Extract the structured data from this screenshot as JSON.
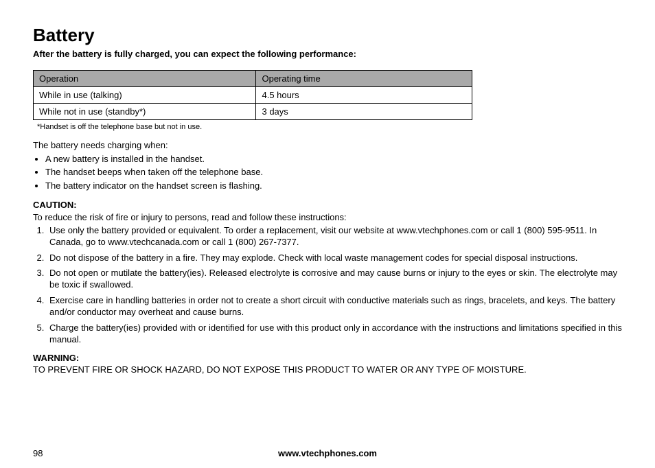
{
  "title": "Battery",
  "subtitle": "After the battery is fully charged, you can expect the following performance:",
  "table": {
    "headers": [
      "Operation",
      "Operating time"
    ],
    "rows": [
      [
        "While in use (talking)",
        "4.5 hours"
      ],
      [
        "While not in use (standby*)",
        "3 days"
      ]
    ]
  },
  "footnote": "*Handset is off the telephone base but not in use.",
  "charging_intro": "The battery needs charging when:",
  "charging_bullets": [
    "A new battery is installed in the handset.",
    "The handset beeps when taken off the telephone base.",
    "The battery indicator on the handset screen is flashing."
  ],
  "caution_label": "CAUTION:",
  "caution_intro": "To reduce the risk of fire or injury to persons, read and follow these instructions:",
  "caution_items": [
    "Use only the battery provided or equivalent. To order a replacement, visit our website at www.vtechphones.com or call 1 (800) 595-9511. In Canada, go to www.vtechcanada.com or call 1 (800) 267-7377.",
    "Do not dispose of the battery in a fire. They may explode. Check with local waste management codes for special disposal instructions.",
    "Do not open or mutilate the battery(ies). Released electrolyte is corrosive and may cause burns or injury to the eyes or skin. The electrolyte may be toxic if swallowed.",
    "Exercise care in handling batteries in order not to create a short circuit with conductive materials such as rings, bracelets, and keys. The battery and/or conductor may overheat and cause burns.",
    "Charge the battery(ies) provided with or identified for use with this product only in accordance with the instructions and limitations specified in this manual."
  ],
  "warning_label": "WARNING:",
  "warning_body": "TO PREVENT FIRE OR SHOCK HAZARD, DO NOT EXPOSE THIS PRODUCT TO WATER OR ANY TYPE OF MOISTURE.",
  "page_number": "98",
  "footer_url": "www.vtechphones.com",
  "colors": {
    "table_header_bg": "#a9a9a9",
    "table_border": "#000000",
    "background": "#ffffff",
    "text": "#000000"
  },
  "typography": {
    "title_size_pt": 20,
    "body_size_pt": 10,
    "footnote_size_pt": 8,
    "font_family": "Arial"
  }
}
